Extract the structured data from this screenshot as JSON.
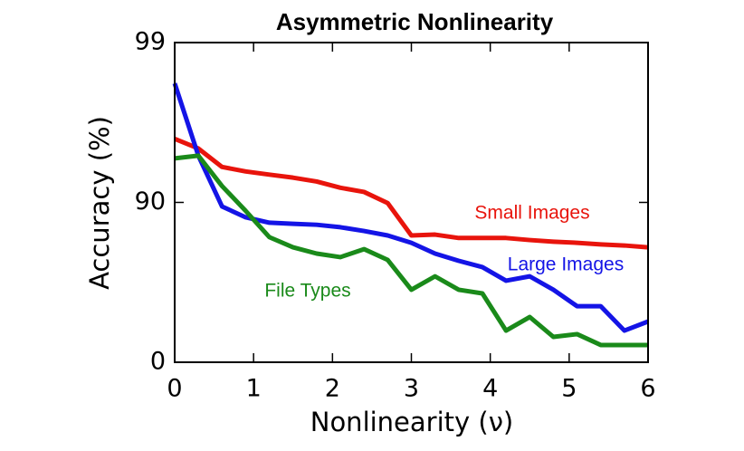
{
  "chart_data": {
    "type": "line",
    "title": "Asymmetric Nonlinearity",
    "x_label": "Nonlinearity (ν)",
    "y_label": "Accuracy (%)",
    "x": [
      0,
      0.3,
      0.6,
      0.9,
      1.2,
      1.5,
      1.8,
      2.1,
      2.4,
      2.7,
      3.0,
      3.3,
      3.6,
      3.9,
      4.2,
      4.5,
      4.8,
      5.1,
      5.4,
      5.7,
      6.0
    ],
    "series": [
      {
        "name": "Small Images",
        "color": "#e8140c",
        "values": [
          96.0,
          95.4,
          94.0,
          93.6,
          93.3,
          93.0,
          92.6,
          91.9,
          91.4,
          89.9,
          83.9,
          84.1,
          83.3,
          83.3,
          83.3,
          82.8,
          82.4,
          82.1,
          81.7,
          81.4,
          80.9
        ]
      },
      {
        "name": "Large Images",
        "color": "#1414e6",
        "values": [
          98.2,
          94.9,
          89.4,
          87.6,
          86.6,
          86.4,
          86.2,
          85.7,
          84.9,
          83.9,
          82.1,
          79.1,
          76.8,
          74.6,
          69.1,
          71.0,
          64.8,
          55.4,
          55.4,
          36.6,
          44.4
        ]
      },
      {
        "name": "File Types",
        "color": "#1a8a1a",
        "values": [
          94.7,
          94.9,
          92.1,
          88.7,
          83.5,
          80.9,
          79.1,
          78.0,
          80.4,
          77.1,
          64.8,
          71.0,
          64.8,
          62.9,
          36.6,
          47.9,
          30.6,
          33.3,
          22.0,
          22.0,
          22.0
        ]
      }
    ],
    "xlim": [
      0,
      6
    ],
    "xticks": [
      0,
      1,
      2,
      3,
      4,
      5,
      6
    ],
    "ylim": [
      0,
      99
    ],
    "yticks": [
      0,
      90,
      99
    ],
    "yscale": "log-error"
  }
}
